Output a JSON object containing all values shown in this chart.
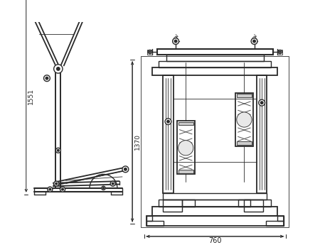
{
  "bg_color": "#ffffff",
  "line_color": "#2a2a2a",
  "dim_color": "#222222",
  "fig_width": 4.5,
  "fig_height": 3.45,
  "dpi": 100,
  "dim_1551": "1551",
  "dim_1370": "1370",
  "dim_760": "760",
  "lw_main": 1.0,
  "lw_thin": 0.6,
  "lw_dim": 0.7
}
